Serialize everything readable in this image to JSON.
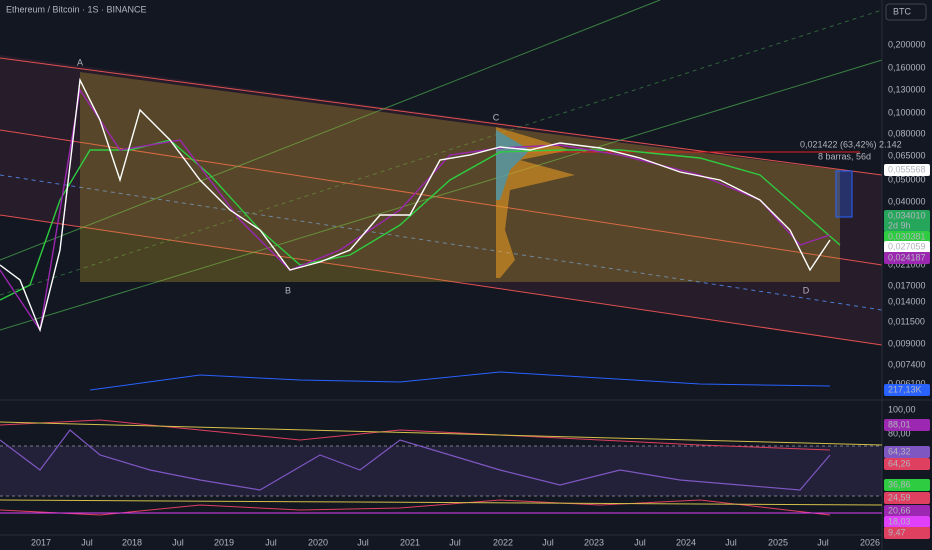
{
  "header": {
    "title": "Ethereum / Bitcoin · 1S · BINANCE",
    "currency": "BTC"
  },
  "price_axis": [
    "0,200000",
    "0,160000",
    "0,130000",
    "0,100000",
    "0,080000",
    "0,065000",
    "0,050000",
    "0,040000",
    "0,021000",
    "0,017000",
    "0,014000",
    "0,011500",
    "0,009000",
    "0,007400",
    "0,006100"
  ],
  "price_tags": [
    "0,055568",
    "0,034010",
    "2d 9h",
    "0,030381",
    "0,027059",
    "0,024187",
    "217,13K"
  ],
  "annotation": {
    "measure": "0,021422 (63,42%) 2.142",
    "bars": "8 barras, 56d"
  },
  "points": [
    "A",
    "B",
    "C",
    "D"
  ],
  "rsi_axis": [
    "100,00",
    "80,00"
  ],
  "rsi_tags": [
    "88,01",
    "64,32",
    "64,26",
    "36,86",
    "24,59",
    "20,66",
    "18,03",
    "9,47"
  ],
  "time_axis": [
    "2017",
    "Jul",
    "2018",
    "Jul",
    "2019",
    "Jul",
    "2020",
    "Jul",
    "2021",
    "Jul",
    "2022",
    "Jul",
    "2023",
    "Jul",
    "2024",
    "Jul",
    "2025",
    "Jul",
    "2026"
  ]
}
